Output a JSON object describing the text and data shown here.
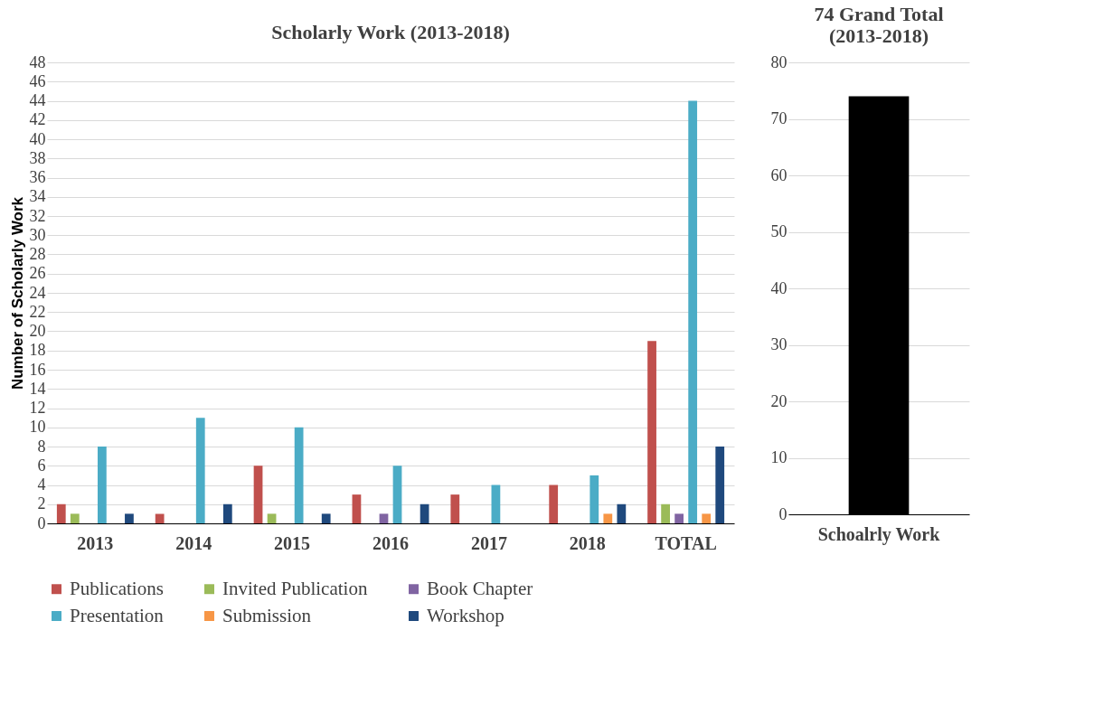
{
  "chart_data": [
    {
      "type": "bar",
      "title": "Scholarly Work (2013-2018)",
      "ylabel": "Number of Scholarly Work",
      "categories": [
        "2013",
        "2014",
        "2015",
        "2016",
        "2017",
        "2018",
        "TOTAL"
      ],
      "series": [
        {
          "name": "Publications",
          "color": "#c0504d",
          "values": [
            2,
            1,
            6,
            3,
            3,
            4,
            19
          ]
        },
        {
          "name": "Invited Publication",
          "color": "#9bbb59",
          "values": [
            1,
            0,
            1,
            0,
            0,
            0,
            2
          ]
        },
        {
          "name": "Book Chapter",
          "color": "#8064a2",
          "values": [
            0,
            0,
            0,
            1,
            0,
            0,
            1
          ]
        },
        {
          "name": "Presentation",
          "color": "#4bacc6",
          "values": [
            8,
            11,
            10,
            6,
            4,
            5,
            44
          ]
        },
        {
          "name": "Submission",
          "color": "#f79646",
          "values": [
            0,
            0,
            0,
            0,
            0,
            1,
            1
          ]
        },
        {
          "name": "Workshop",
          "color": "#1f497d",
          "values": [
            1,
            2,
            1,
            2,
            0,
            2,
            8
          ]
        }
      ],
      "ylim": [
        0,
        48
      ],
      "yticks": [
        0,
        2,
        4,
        6,
        8,
        10,
        12,
        14,
        16,
        18,
        20,
        22,
        24,
        26,
        28,
        30,
        32,
        34,
        36,
        38,
        40,
        42,
        44,
        46,
        48
      ],
      "grid": "y",
      "legend": "bottom"
    },
    {
      "type": "bar",
      "title": "74 Grand Total\n(2013-2018)",
      "categories": [
        "Schoalrly Work"
      ],
      "series": [
        {
          "color": "#000000",
          "values": [
            74
          ]
        }
      ],
      "ylim": [
        0,
        80
      ],
      "yticks": [
        0,
        10,
        20,
        30,
        40,
        50,
        60,
        70,
        80
      ],
      "grid": "y"
    }
  ]
}
